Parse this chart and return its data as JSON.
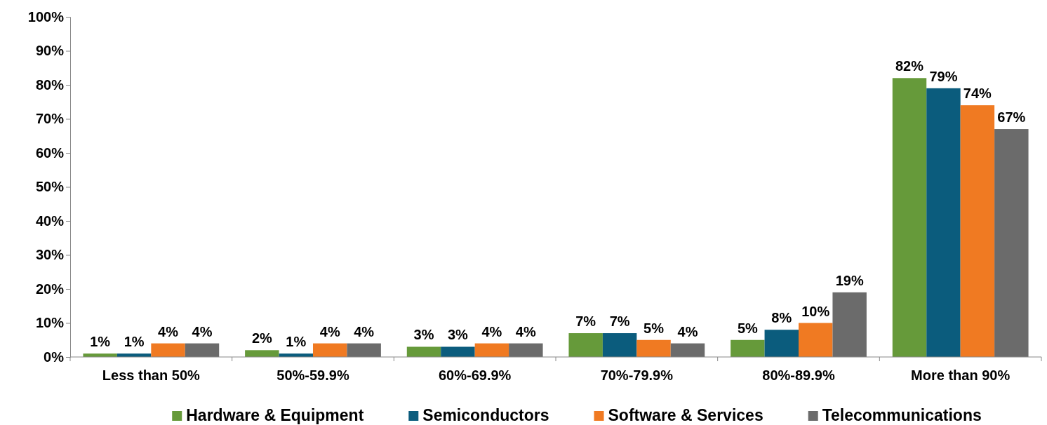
{
  "chart_data": {
    "type": "bar",
    "categories": [
      "Less than 50%",
      "50%-59.9%",
      "60%-69.9%",
      "70%-79.9%",
      "80%-89.9%",
      "More than 90%"
    ],
    "series": [
      {
        "name": "Hardware & Equipment",
        "color": "#669a3a",
        "values": [
          1,
          2,
          3,
          7,
          5,
          82
        ],
        "value_labels": [
          "1%",
          "2%",
          "3%",
          "7%",
          "5%",
          "82%"
        ]
      },
      {
        "name": "Semiconductors",
        "color": "#0b5c7d",
        "values": [
          1,
          1,
          3,
          7,
          8,
          79
        ],
        "value_labels": [
          "1%",
          "1%",
          "3%",
          "7%",
          "8%",
          "79%"
        ]
      },
      {
        "name": "Software & Services",
        "color": "#f07a22",
        "values": [
          4,
          4,
          4,
          5,
          10,
          74
        ],
        "value_labels": [
          "4%",
          "4%",
          "4%",
          "5%",
          "10%",
          "74%"
        ]
      },
      {
        "name": "Telecommunications",
        "color": "#6b6b6b",
        "values": [
          4,
          4,
          4,
          4,
          19,
          67
        ],
        "value_labels": [
          "4%",
          "4%",
          "4%",
          "4%",
          "19%",
          "67%"
        ]
      }
    ],
    "ylim": [
      0,
      100
    ],
    "yticks": [
      {
        "value": 0,
        "label": "0%"
      },
      {
        "value": 10,
        "label": "10%"
      },
      {
        "value": 20,
        "label": "20%"
      },
      {
        "value": 30,
        "label": "30%"
      },
      {
        "value": 40,
        "label": "40%"
      },
      {
        "value": 50,
        "label": "50%"
      },
      {
        "value": 60,
        "label": "60%"
      },
      {
        "value": 70,
        "label": "70%"
      },
      {
        "value": 80,
        "label": "80%"
      },
      {
        "value": 90,
        "label": "90%"
      },
      {
        "value": 100,
        "label": "100%"
      }
    ],
    "grid": false,
    "legend": "bottom"
  }
}
